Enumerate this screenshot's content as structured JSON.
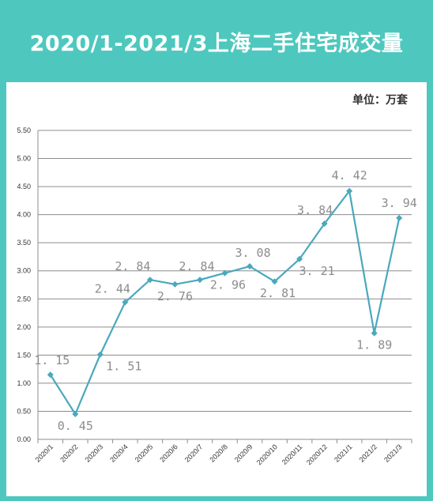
{
  "header": {
    "title": "2020/1-2021/3上海二手住宅成交量",
    "unit": "单位：万套"
  },
  "colors": {
    "background": "#4ec8be",
    "line": "#4aa8bc",
    "label": "#8c8c8c",
    "grid": "#8c8c8c"
  },
  "chart_data": {
    "type": "line",
    "title": "2020/1-2021/3上海二手住宅成交量",
    "xlabel": "",
    "ylabel": "",
    "unit": "单位：万套",
    "categories": [
      "2020/1",
      "2020/2",
      "2020/3",
      "2020/4",
      "2020/5",
      "2020/6",
      "2020/7",
      "2020/8",
      "2020/9",
      "2020/10",
      "2020/11",
      "2020/12",
      "2021/1",
      "2021/2",
      "2021/3"
    ],
    "series": [
      {
        "values": [
          1.15,
          0.45,
          1.51,
          2.44,
          2.84,
          2.76,
          2.84,
          2.96,
          3.08,
          2.81,
          3.21,
          3.84,
          4.42,
          1.89,
          3.94
        ]
      }
    ],
    "data_labels": [
      "1. 15",
      "0. 45",
      "1. 51",
      "2. 44",
      "2. 84",
      "2. 76",
      "2. 84",
      "2. 96",
      "3. 08",
      "2. 81",
      "3. 21",
      "3. 84",
      "4. 42",
      "1. 89",
      "3. 94"
    ],
    "y_ticks": [
      "0.00",
      "0.50",
      "1.00",
      "1.50",
      "2.00",
      "2.50",
      "3.00",
      "3.50",
      "4.00",
      "4.50",
      "5.00",
      "5.50"
    ],
    "ylim": [
      0,
      5.5
    ],
    "grid": true,
    "legend": "none",
    "marker": "diamond"
  }
}
